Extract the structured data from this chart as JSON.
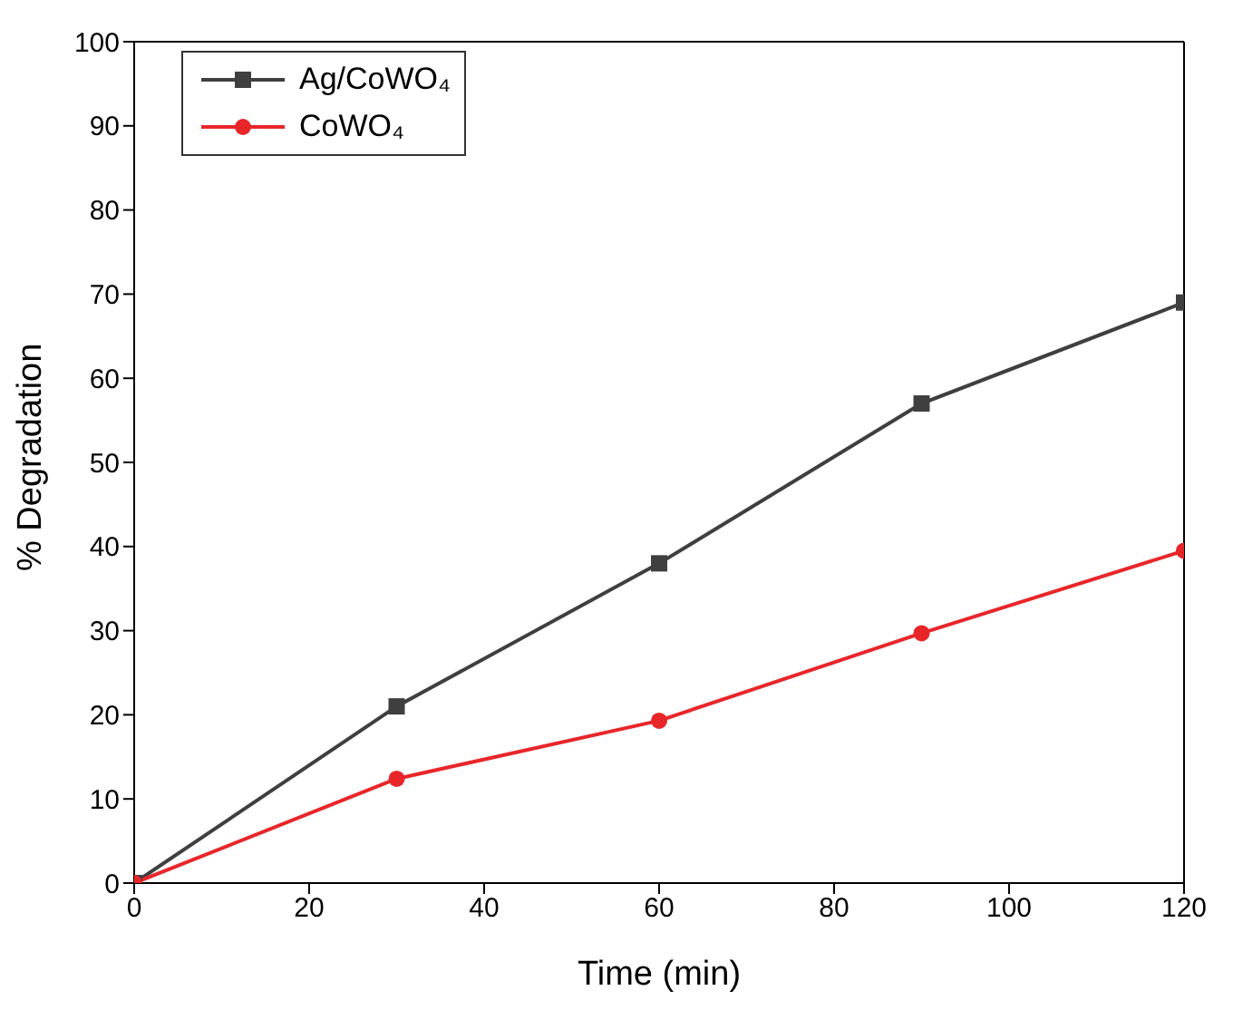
{
  "chart_data": {
    "type": "line",
    "xlabel": "Time (min)",
    "ylabel": "% Degradation",
    "x": [
      0,
      30,
      60,
      90,
      120
    ],
    "series": [
      {
        "name": "Ag/CoWO₄",
        "color": "#3f3f3f",
        "marker": "square",
        "values": [
          0,
          21,
          38,
          57,
          69
        ]
      },
      {
        "name": "CoWO₄",
        "color": "#e8262a",
        "marker": "circle",
        "values": [
          0,
          12.4,
          19.3,
          29.7,
          39.5
        ]
      }
    ],
    "xlim": [
      0,
      120
    ],
    "xticks": [
      0,
      20,
      40,
      60,
      80,
      100,
      120
    ],
    "ylim": [
      0,
      100
    ],
    "yticks": [
      0,
      10,
      20,
      30,
      40,
      50,
      60,
      70,
      80,
      90,
      100
    ],
    "legend": "top left",
    "line_style": "solid"
  }
}
